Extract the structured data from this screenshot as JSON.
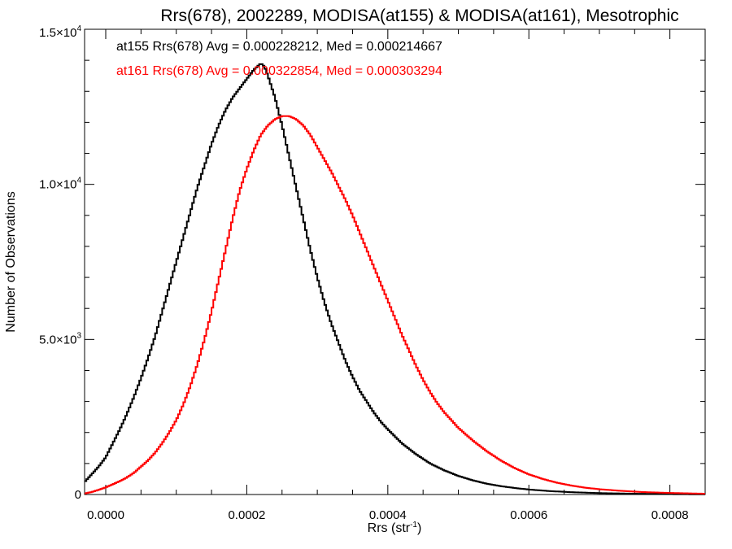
{
  "chart_data": {
    "type": "line",
    "title": "Rrs(678), 2002289, MODISA(at155) & MODISA(at161), Mesotrophic",
    "xlabel_base": "Rrs (str",
    "xlabel_sup": "-1",
    "xlabel_end": ")",
    "ylabel": "Number of Observations",
    "xlim": [
      -3e-05,
      0.00085
    ],
    "ylim": [
      0,
      15000
    ],
    "grid": false,
    "x_ticks": [
      {
        "value": 0.0,
        "label": "0.0000"
      },
      {
        "value": 0.0002,
        "label": "0.0002"
      },
      {
        "value": 0.0004,
        "label": "0.0004"
      },
      {
        "value": 0.0006,
        "label": "0.0006"
      },
      {
        "value": 0.0008,
        "label": "0.0008"
      }
    ],
    "y_ticks": [
      {
        "value": 0,
        "mant": "0",
        "exp": ""
      },
      {
        "value": 5000,
        "mant": "5.0×10",
        "exp": "3"
      },
      {
        "value": 10000,
        "mant": "1.0×10",
        "exp": "4"
      },
      {
        "value": 15000,
        "mant": "1.5×10",
        "exp": "4"
      }
    ],
    "legend_position": "top-left",
    "series": [
      {
        "name": "at155 Rrs(678) Avg = 0.000228212, Med = 0.000214667",
        "color": "#000000",
        "points": [
          [
            -3e-05,
            400
          ],
          [
            -2e-05,
            650
          ],
          [
            -1e-05,
            900
          ],
          [
            0.0,
            1200
          ],
          [
            1e-05,
            1650
          ],
          [
            2e-05,
            2100
          ],
          [
            3e-05,
            2600
          ],
          [
            4e-05,
            3150
          ],
          [
            5e-05,
            3750
          ],
          [
            6e-05,
            4400
          ],
          [
            7e-05,
            5100
          ],
          [
            8e-05,
            5900
          ],
          [
            9e-05,
            6700
          ],
          [
            0.0001,
            7500
          ],
          [
            0.00011,
            8300
          ],
          [
            0.00012,
            9100
          ],
          [
            0.00013,
            9900
          ],
          [
            0.00014,
            10600
          ],
          [
            0.00015,
            11300
          ],
          [
            0.00016,
            11900
          ],
          [
            0.00017,
            12400
          ],
          [
            0.00018,
            12800
          ],
          [
            0.00019,
            13100
          ],
          [
            0.0002,
            13400
          ],
          [
            0.00021,
            13700
          ],
          [
            0.00022,
            13900
          ],
          [
            0.000225,
            13800
          ],
          [
            0.00023,
            13500
          ],
          [
            0.00024,
            12800
          ],
          [
            0.00025,
            11900
          ],
          [
            0.00026,
            10900
          ],
          [
            0.00027,
            9900
          ],
          [
            0.00028,
            8900
          ],
          [
            0.00029,
            7900
          ],
          [
            0.0003,
            7000
          ],
          [
            0.00031,
            6200
          ],
          [
            0.00032,
            5500
          ],
          [
            0.00033,
            4900
          ],
          [
            0.00034,
            4300
          ],
          [
            0.00035,
            3800
          ],
          [
            0.00036,
            3350
          ],
          [
            0.00037,
            3000
          ],
          [
            0.00038,
            2650
          ],
          [
            0.00039,
            2350
          ],
          [
            0.0004,
            2100
          ],
          [
            0.00042,
            1650
          ],
          [
            0.00044,
            1300
          ],
          [
            0.00046,
            1000
          ],
          [
            0.00048,
            780
          ],
          [
            0.0005,
            600
          ],
          [
            0.00052,
            460
          ],
          [
            0.00054,
            350
          ],
          [
            0.00056,
            270
          ],
          [
            0.00058,
            210
          ],
          [
            0.0006,
            160
          ],
          [
            0.00063,
            110
          ],
          [
            0.00066,
            75
          ],
          [
            0.0007,
            45
          ],
          [
            0.00075,
            25
          ],
          [
            0.0008,
            12
          ],
          [
            0.00085,
            5
          ]
        ]
      },
      {
        "name": "at161 Rrs(678) Avg = 0.000322854, Med = 0.000303294",
        "color": "#ff0000",
        "points": [
          [
            -3e-05,
            30
          ],
          [
            -2e-05,
            80
          ],
          [
            -1e-05,
            150
          ],
          [
            0.0,
            230
          ],
          [
            1e-05,
            330
          ],
          [
            2e-05,
            430
          ],
          [
            3e-05,
            550
          ],
          [
            4e-05,
            700
          ],
          [
            5e-05,
            900
          ],
          [
            6e-05,
            1100
          ],
          [
            7e-05,
            1350
          ],
          [
            8e-05,
            1650
          ],
          [
            9e-05,
            2000
          ],
          [
            0.0001,
            2400
          ],
          [
            0.00011,
            2900
          ],
          [
            0.00012,
            3500
          ],
          [
            0.00013,
            4200
          ],
          [
            0.00014,
            5000
          ],
          [
            0.00015,
            5900
          ],
          [
            0.00016,
            6900
          ],
          [
            0.00017,
            7900
          ],
          [
            0.00018,
            8900
          ],
          [
            0.00019,
            9800
          ],
          [
            0.0002,
            10500
          ],
          [
            0.00021,
            11100
          ],
          [
            0.00022,
            11600
          ],
          [
            0.00023,
            11900
          ],
          [
            0.00024,
            12100
          ],
          [
            0.00025,
            12200
          ],
          [
            0.00026,
            12200
          ],
          [
            0.00027,
            12100
          ],
          [
            0.00028,
            11900
          ],
          [
            0.00029,
            11600
          ],
          [
            0.0003,
            11200
          ],
          [
            0.00031,
            10800
          ],
          [
            0.00032,
            10400
          ],
          [
            0.00033,
            9950
          ],
          [
            0.00034,
            9500
          ],
          [
            0.00035,
            9000
          ],
          [
            0.00036,
            8450
          ],
          [
            0.00037,
            7900
          ],
          [
            0.00038,
            7350
          ],
          [
            0.00039,
            6800
          ],
          [
            0.0004,
            6250
          ],
          [
            0.00041,
            5700
          ],
          [
            0.00042,
            5150
          ],
          [
            0.00043,
            4650
          ],
          [
            0.00044,
            4150
          ],
          [
            0.00045,
            3700
          ],
          [
            0.00046,
            3300
          ],
          [
            0.00047,
            2950
          ],
          [
            0.00048,
            2650
          ],
          [
            0.00049,
            2400
          ],
          [
            0.0005,
            2150
          ],
          [
            0.00052,
            1750
          ],
          [
            0.00054,
            1400
          ],
          [
            0.00056,
            1100
          ],
          [
            0.00058,
            850
          ],
          [
            0.0006,
            650
          ],
          [
            0.00062,
            500
          ],
          [
            0.00064,
            380
          ],
          [
            0.00066,
            290
          ],
          [
            0.00068,
            220
          ],
          [
            0.0007,
            170
          ],
          [
            0.00073,
            120
          ],
          [
            0.00076,
            80
          ],
          [
            0.0008,
            50
          ],
          [
            0.00085,
            25
          ]
        ]
      }
    ]
  }
}
